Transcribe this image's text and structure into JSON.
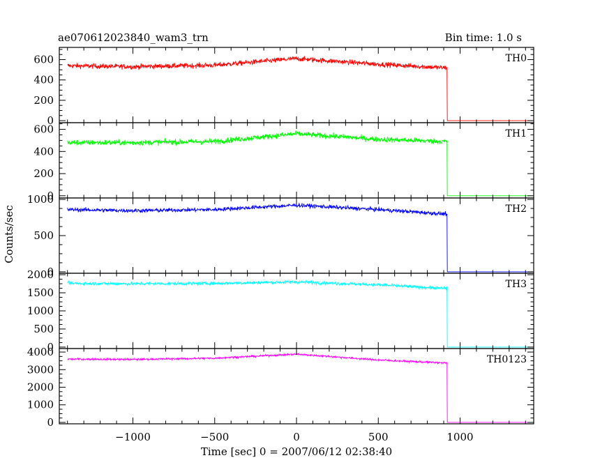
{
  "header": {
    "title": "ae070612023840_wam3_trn",
    "bin_time": "Bin time: 1.0 s"
  },
  "chart_data": {
    "type": "line",
    "ylabel": "Counts/sec",
    "xlabel": "Time [sec] 0 = 2007/06/12 02:38:40",
    "xlim": [
      -1450,
      1450
    ],
    "x_ticks": [
      -1000,
      -500,
      0,
      500,
      1000
    ],
    "x_tick_labels": [
      "−1000",
      "−500",
      "0",
      "500",
      "1000"
    ],
    "data_range_x": [
      -1400,
      920
    ],
    "colors": {
      "TH0": "#ff0000",
      "TH1": "#00ff00",
      "TH2": "#0000ff",
      "TH3": "#00ffff",
      "TH0123": "#ff00ff"
    },
    "panels": [
      {
        "name": "TH0",
        "ylim": [
          -20,
          720
        ],
        "yticks": [
          0,
          200,
          400,
          600
        ],
        "ytick_labels": [
          "0",
          "200",
          "400",
          "600"
        ],
        "series_anchor": [
          [
            -1400,
            540
          ],
          [
            -1000,
            530
          ],
          [
            -500,
            545
          ],
          [
            0,
            610
          ],
          [
            500,
            555
          ],
          [
            900,
            520
          ]
        ],
        "noise": 25,
        "after_value": 0
      },
      {
        "name": "TH1",
        "ylim": [
          -20,
          660
        ],
        "yticks": [
          0,
          200,
          400,
          600
        ],
        "ytick_labels": [
          "0",
          "200",
          "400",
          "600"
        ],
        "series_anchor": [
          [
            -1400,
            480
          ],
          [
            -1000,
            480
          ],
          [
            -500,
            490
          ],
          [
            0,
            560
          ],
          [
            500,
            510
          ],
          [
            900,
            490
          ]
        ],
        "noise": 25,
        "after_value": 0
      },
      {
        "name": "TH2",
        "ylim": [
          -20,
          1020
        ],
        "yticks": [
          0,
          500,
          1000
        ],
        "ytick_labels": [
          "0",
          "500",
          "1000"
        ],
        "series_anchor": [
          [
            -1400,
            860
          ],
          [
            -1000,
            845
          ],
          [
            -500,
            860
          ],
          [
            0,
            920
          ],
          [
            500,
            860
          ],
          [
            900,
            800
          ]
        ],
        "noise": 28,
        "after_value": 0
      },
      {
        "name": "TH3",
        "ylim": [
          -40,
          2040
        ],
        "yticks": [
          0,
          500,
          1000,
          1500,
          2000
        ],
        "ytick_labels": [
          "0",
          "500",
          "1000",
          "1500",
          "2000"
        ],
        "series_anchor": [
          [
            -1400,
            1760
          ],
          [
            -1000,
            1750
          ],
          [
            -500,
            1760
          ],
          [
            0,
            1800
          ],
          [
            500,
            1720
          ],
          [
            900,
            1620
          ]
        ],
        "noise": 45,
        "after_value": 0
      },
      {
        "name": "TH0123",
        "ylim": [
          -80,
          4200
        ],
        "yticks": [
          0,
          1000,
          2000,
          3000,
          4000
        ],
        "ytick_labels": [
          "0",
          "1000",
          "2000",
          "3000",
          "4000"
        ],
        "series_anchor": [
          [
            -1400,
            3600
          ],
          [
            -1000,
            3580
          ],
          [
            -500,
            3650
          ],
          [
            0,
            3880
          ],
          [
            500,
            3550
          ],
          [
            900,
            3380
          ]
        ],
        "noise": 55,
        "after_value": 0
      }
    ]
  }
}
